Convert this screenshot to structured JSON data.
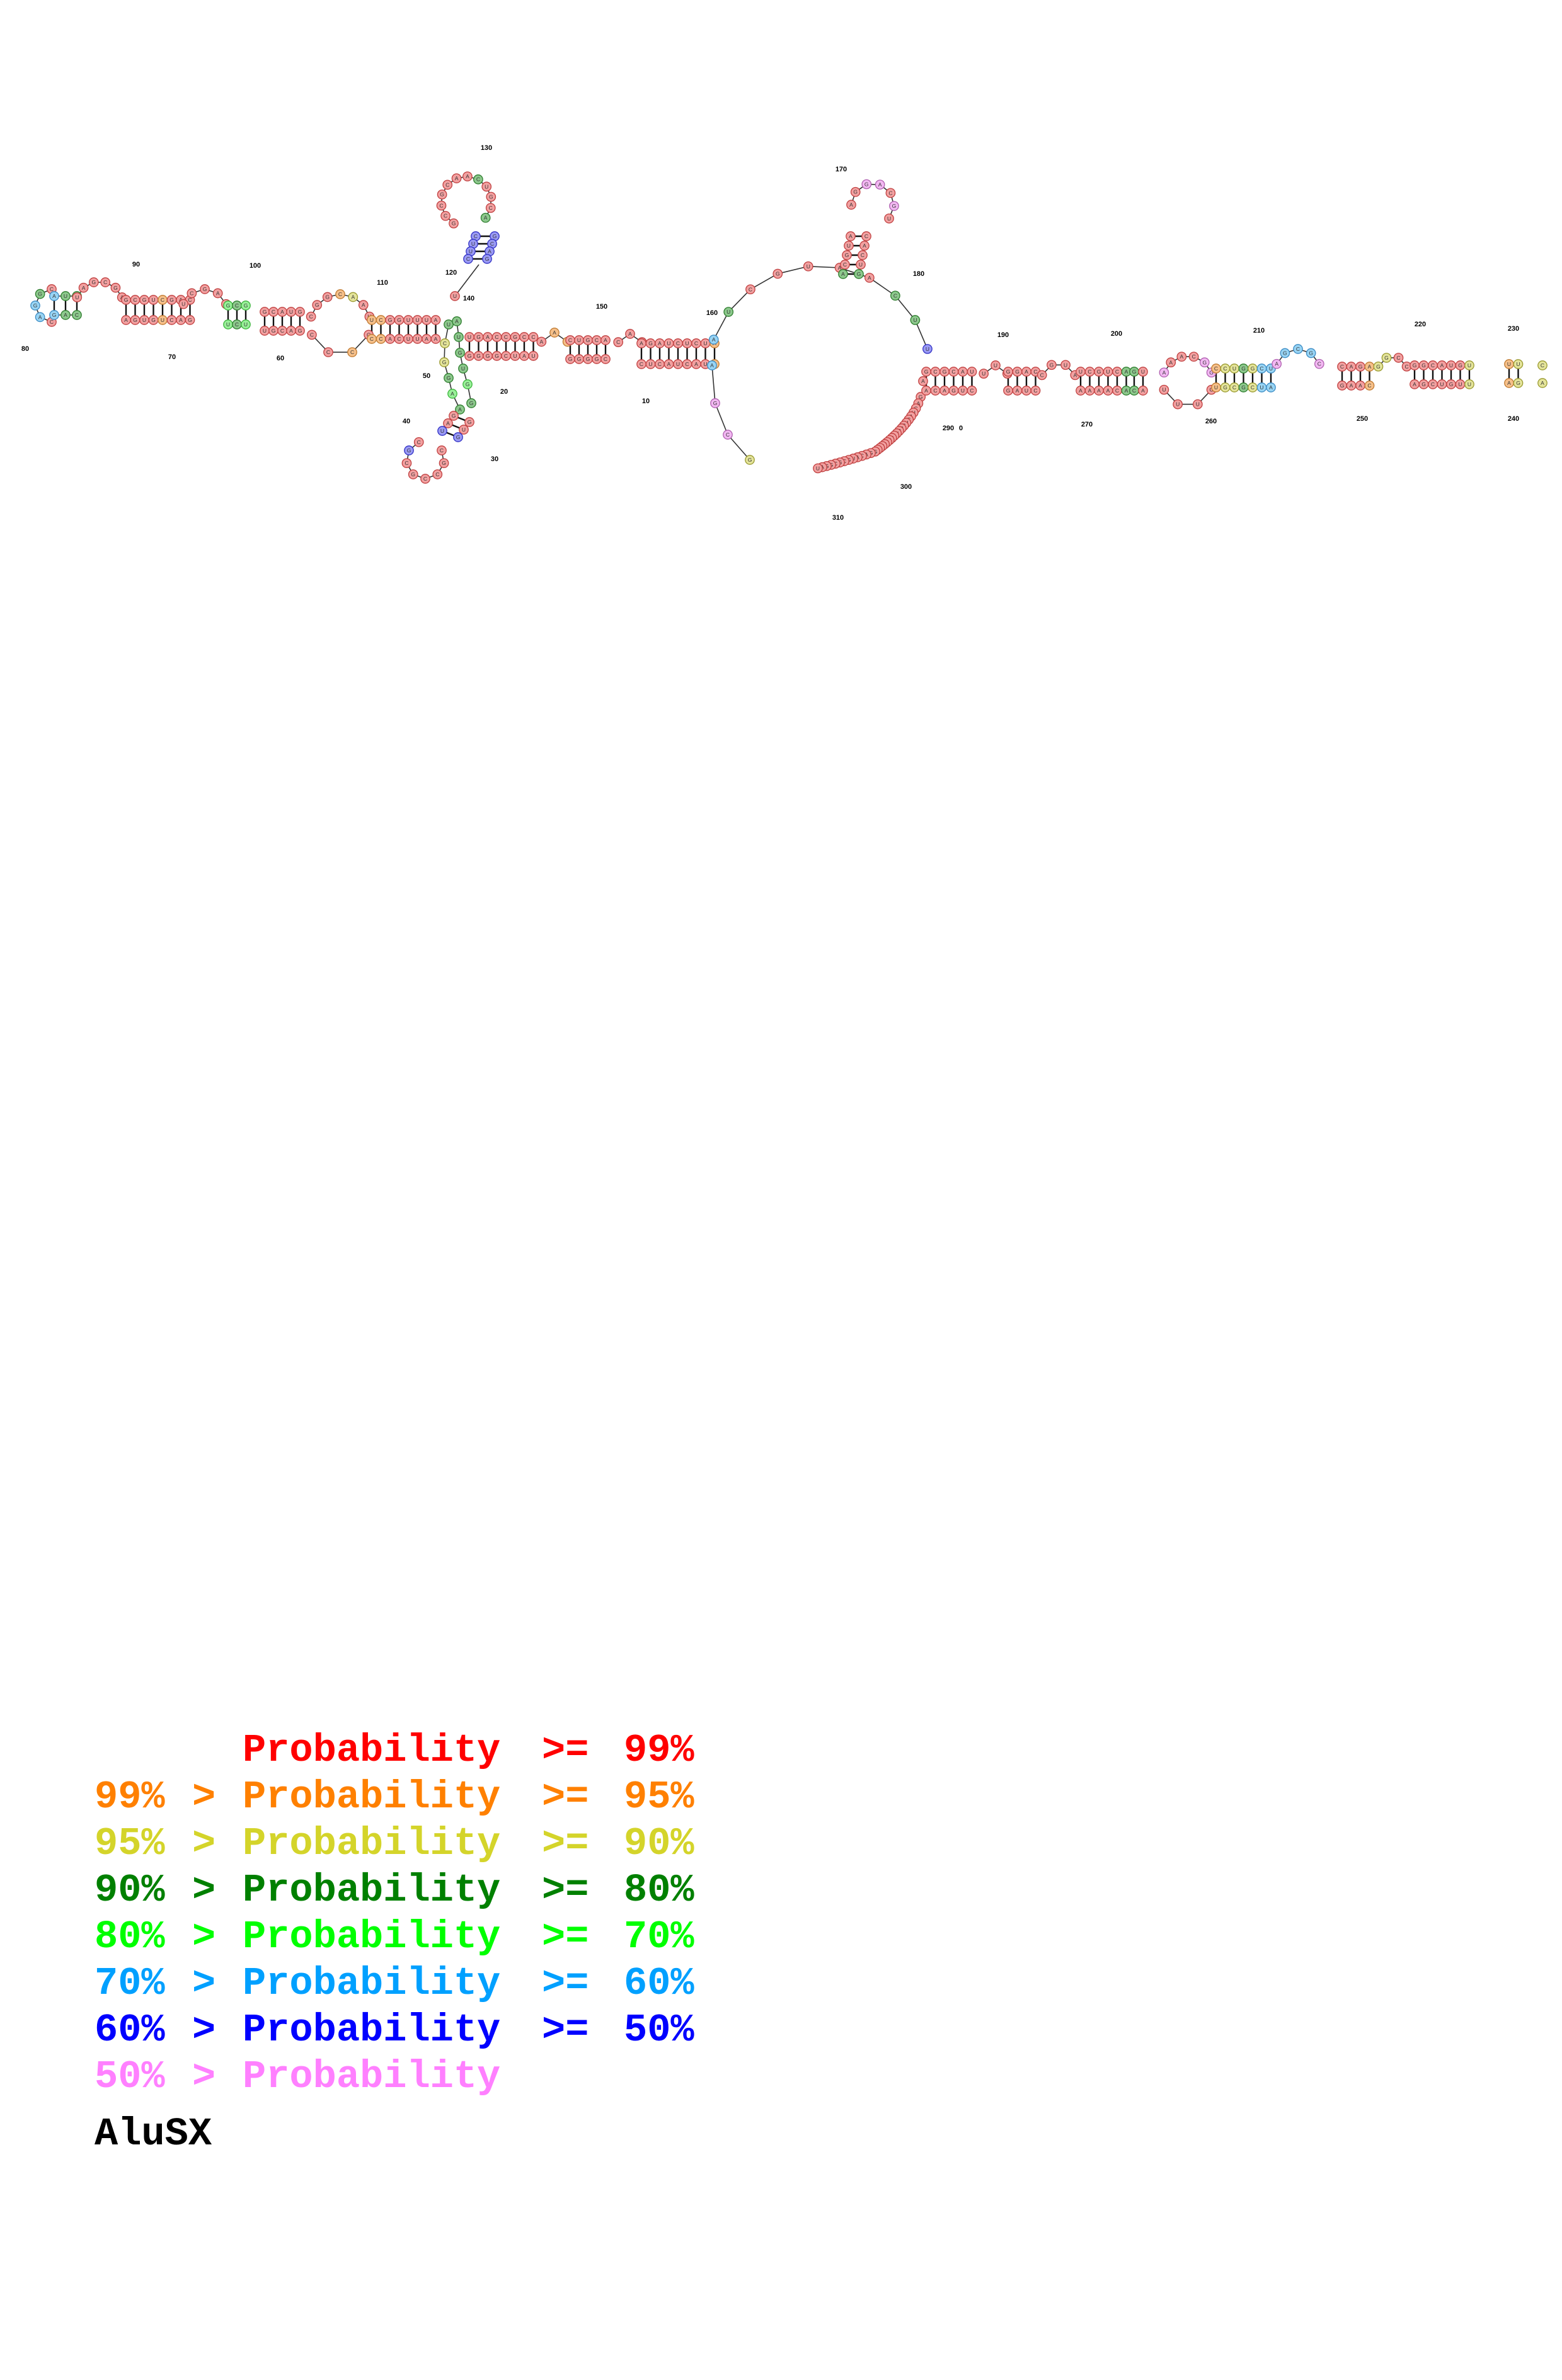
{
  "structure": {
    "sequence_name": "AluSX",
    "position_labels": [
      "10",
      "20",
      "30",
      "40",
      "50",
      "60",
      "70",
      "80",
      "90",
      "100",
      "110",
      "120",
      "130",
      "140",
      "150",
      "160",
      "170",
      "180",
      "190",
      "200",
      "210",
      "220",
      "230",
      "240",
      "250",
      "260",
      "270",
      "280",
      "290",
      "300",
      "310"
    ],
    "label_at_280": "0"
  },
  "legend": {
    "rows": [
      {
        "lo": "",
        "gt": "",
        "word": "Probability",
        "ge": ">=",
        "hi": "99%",
        "color": "#ff0000"
      },
      {
        "lo": "99%",
        "gt": ">",
        "word": "Probability",
        "ge": ">=",
        "hi": "95%",
        "color": "#ff8000"
      },
      {
        "lo": "95%",
        "gt": ">",
        "word": "Probability",
        "ge": ">=",
        "hi": "90%",
        "color": "#d4d42a"
      },
      {
        "lo": "90%",
        "gt": ">",
        "word": "Probability",
        "ge": ">=",
        "hi": "80%",
        "color": "#008000"
      },
      {
        "lo": "80%",
        "gt": ">",
        "word": "Probability",
        "ge": ">=",
        "hi": "70%",
        "color": "#00ff00"
      },
      {
        "lo": "70%",
        "gt": ">",
        "word": "Probability",
        "ge": ">=",
        "hi": "60%",
        "color": "#00a0ff"
      },
      {
        "lo": "60%",
        "gt": ">",
        "word": "Probability",
        "ge": ">=",
        "hi": "50%",
        "color": "#0000ff"
      },
      {
        "lo": "50%",
        "gt": ">",
        "word": "Probability",
        "ge": "",
        "hi": "",
        "color": "#ff80ff"
      }
    ]
  }
}
